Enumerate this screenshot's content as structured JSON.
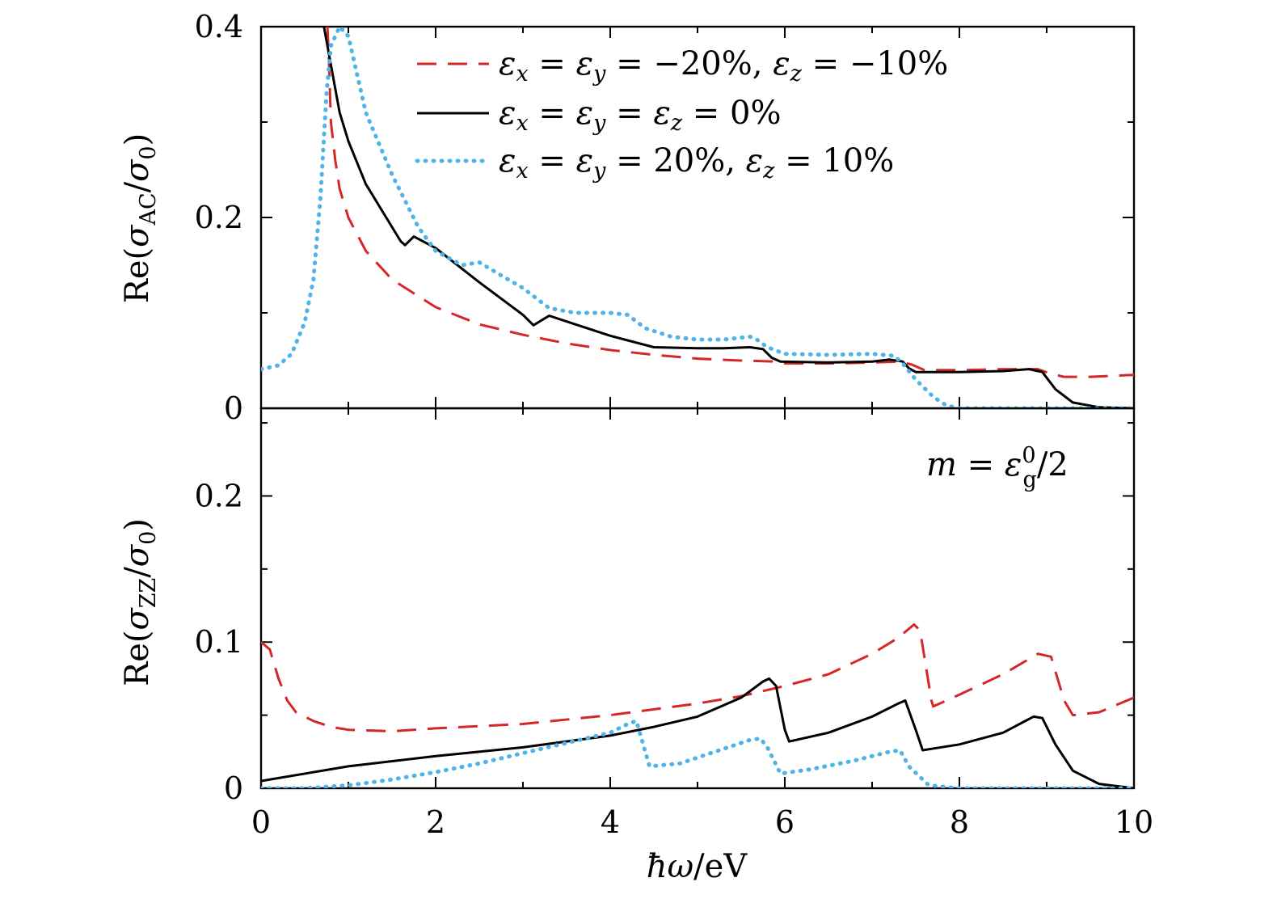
{
  "chart_data": [
    {
      "type": "line",
      "panel": "top",
      "ylabel": "Re(σAC/σ0)",
      "ylabel_parts": {
        "pre": "Re(",
        "sym": "σ",
        "sub": "AC",
        "mid": "/",
        "sym2": "σ",
        "sub2": "0",
        "post": ")"
      },
      "xlim": [
        0,
        10
      ],
      "ylim": [
        0,
        0.4
      ],
      "yticks": [
        0,
        0.2,
        0.4
      ],
      "ytick_labels": [
        "0",
        "0.2",
        "0.4"
      ],
      "grid": false,
      "legend_position": "top-right",
      "series": [
        {
          "name": "εx = εy = −20%, εz = −10%",
          "color": "#d62728",
          "style": "dashed",
          "x": [
            0.76,
            0.78,
            0.8,
            0.85,
            0.9,
            1.0,
            1.2,
            1.5,
            2.0,
            2.5,
            3.0,
            3.5,
            4.0,
            4.5,
            5.0,
            5.5,
            5.9,
            6.0,
            6.5,
            7.0,
            7.3,
            7.45,
            7.6,
            8.0,
            8.5,
            8.9,
            9.05,
            9.2,
            9.5,
            10.0
          ],
          "y": [
            0.4,
            0.36,
            0.3,
            0.26,
            0.23,
            0.2,
            0.165,
            0.135,
            0.106,
            0.088,
            0.077,
            0.068,
            0.061,
            0.056,
            0.052,
            0.05,
            0.049,
            0.047,
            0.047,
            0.048,
            0.049,
            0.046,
            0.04,
            0.04,
            0.041,
            0.041,
            0.036,
            0.033,
            0.033,
            0.035
          ]
        },
        {
          "name": "εx = εy = εz = 0%",
          "color": "#000000",
          "style": "solid",
          "x": [
            0.72,
            0.8,
            0.9,
            1.0,
            1.2,
            1.4,
            1.6,
            1.65,
            1.75,
            2.0,
            2.5,
            3.0,
            3.12,
            3.3,
            3.6,
            4.0,
            4.5,
            5.0,
            5.3,
            5.6,
            5.75,
            5.85,
            5.95,
            6.5,
            7.0,
            7.2,
            7.35,
            7.42,
            7.5,
            8.0,
            8.5,
            8.8,
            8.95,
            9.1,
            9.3,
            9.6,
            10.0
          ],
          "y": [
            0.4,
            0.36,
            0.31,
            0.28,
            0.235,
            0.205,
            0.175,
            0.171,
            0.18,
            0.168,
            0.132,
            0.098,
            0.087,
            0.097,
            0.088,
            0.076,
            0.064,
            0.063,
            0.063,
            0.064,
            0.062,
            0.053,
            0.049,
            0.048,
            0.049,
            0.051,
            0.049,
            0.042,
            0.038,
            0.038,
            0.039,
            0.041,
            0.038,
            0.02,
            0.006,
            0.001,
            0.0
          ]
        },
        {
          "name": "εx = εy = 20%, εz = 10%",
          "color": "#4fb3e8",
          "style": "dotted",
          "x": [
            0.0,
            0.2,
            0.35,
            0.5,
            0.6,
            0.68,
            0.75,
            0.8,
            0.9,
            1.0,
            1.2,
            1.5,
            1.8,
            2.0,
            2.3,
            2.5,
            2.7,
            3.0,
            3.3,
            3.6,
            4.0,
            4.2,
            4.4,
            4.7,
            5.0,
            5.3,
            5.6,
            5.65,
            5.8,
            6.0,
            6.5,
            7.0,
            7.25,
            7.35,
            7.5,
            7.7,
            7.85,
            8.0,
            10.0
          ],
          "y": [
            0.041,
            0.045,
            0.057,
            0.09,
            0.135,
            0.22,
            0.33,
            0.38,
            0.4,
            0.39,
            0.31,
            0.245,
            0.19,
            0.165,
            0.15,
            0.153,
            0.142,
            0.126,
            0.105,
            0.1,
            0.1,
            0.098,
            0.084,
            0.075,
            0.072,
            0.072,
            0.075,
            0.074,
            0.064,
            0.057,
            0.056,
            0.057,
            0.055,
            0.047,
            0.03,
            0.012,
            0.003,
            0.0,
            0.0
          ]
        }
      ]
    },
    {
      "type": "line",
      "panel": "bottom",
      "xlabel": "ħω/eV",
      "xlabel_parts": {
        "sym": "ħω",
        "post": "/eV"
      },
      "ylabel": "Re(σZZ/σ0)",
      "ylabel_parts": {
        "pre": "Re(",
        "sym": "σ",
        "sub": "ZZ",
        "mid": "/",
        "sym2": "σ",
        "sub2": "0",
        "post": ")"
      },
      "xlim": [
        0,
        10
      ],
      "ylim": [
        0,
        0.26
      ],
      "xticks": [
        0,
        2,
        4,
        6,
        8,
        10
      ],
      "xtick_labels": [
        "0",
        "2",
        "4",
        "6",
        "8",
        "10"
      ],
      "yticks": [
        0,
        0.1,
        0.2
      ],
      "ytick_labels": [
        "0",
        "0.1",
        "0.2"
      ],
      "grid": false,
      "annotation": {
        "pre": "m = ε",
        "sup": "0",
        "sub": "g",
        "post": "/2"
      },
      "series": [
        {
          "name": "εx = εy = −20%, εz = −10%",
          "color": "#d62728",
          "style": "dashed",
          "x": [
            0.0,
            0.1,
            0.2,
            0.3,
            0.4,
            0.6,
            0.8,
            1.0,
            1.5,
            2.0,
            3.0,
            4.0,
            5.0,
            5.5,
            6.0,
            6.5,
            7.0,
            7.3,
            7.48,
            7.55,
            7.68,
            7.7,
            8.0,
            8.5,
            8.9,
            9.05,
            9.2,
            9.3,
            9.6,
            10.0
          ],
          "y": [
            0.1,
            0.095,
            0.075,
            0.06,
            0.052,
            0.046,
            0.042,
            0.04,
            0.039,
            0.041,
            0.044,
            0.05,
            0.058,
            0.063,
            0.07,
            0.078,
            0.092,
            0.103,
            0.112,
            0.108,
            0.06,
            0.056,
            0.064,
            0.078,
            0.092,
            0.09,
            0.06,
            0.05,
            0.052,
            0.062
          ]
        },
        {
          "name": "εx = εy = εz = 0%",
          "color": "#000000",
          "style": "solid",
          "x": [
            0.0,
            1.0,
            2.0,
            3.0,
            4.0,
            4.5,
            5.0,
            5.5,
            5.75,
            5.82,
            5.9,
            6.0,
            6.05,
            6.5,
            7.0,
            7.3,
            7.38,
            7.5,
            7.58,
            8.0,
            8.5,
            8.85,
            8.95,
            9.1,
            9.3,
            9.6,
            10.0
          ],
          "y": [
            0.005,
            0.015,
            0.022,
            0.028,
            0.036,
            0.042,
            0.049,
            0.062,
            0.073,
            0.075,
            0.07,
            0.04,
            0.032,
            0.038,
            0.049,
            0.058,
            0.06,
            0.04,
            0.026,
            0.03,
            0.038,
            0.049,
            0.048,
            0.03,
            0.012,
            0.003,
            0.0
          ]
        },
        {
          "name": "εx = εy = 20%, εz = 10%",
          "color": "#4fb3e8",
          "style": "dotted",
          "x": [
            0.0,
            0.5,
            1.0,
            1.5,
            2.0,
            2.5,
            3.0,
            3.5,
            4.0,
            4.2,
            4.3,
            4.45,
            4.8,
            5.2,
            5.6,
            5.72,
            5.8,
            5.95,
            6.3,
            6.8,
            7.2,
            7.32,
            7.42,
            7.65,
            8.0,
            10.0
          ],
          "y": [
            0.0,
            0.0,
            0.002,
            0.006,
            0.011,
            0.017,
            0.024,
            0.031,
            0.038,
            0.044,
            0.046,
            0.015,
            0.017,
            0.025,
            0.033,
            0.034,
            0.028,
            0.01,
            0.013,
            0.019,
            0.025,
            0.026,
            0.015,
            0.002,
            0.0,
            0.0
          ]
        }
      ]
    }
  ],
  "legend": [
    {
      "a": "ε",
      "asub": "x",
      "b": "ε",
      "bsub": "y",
      "mid": " = −20%, ",
      "c": "ε",
      "csub": "z",
      "end": " = −10%"
    },
    {
      "a": "ε",
      "asub": "x",
      "b": "ε",
      "bsub": "y",
      "mid": " = ",
      "c": "ε",
      "csub": "z",
      "end": " = 0%"
    },
    {
      "a": "ε",
      "asub": "x",
      "b": "ε",
      "bsub": "y",
      "mid": " = 20%, ",
      "c": "ε",
      "csub": "z",
      "end": " = 10%"
    }
  ]
}
